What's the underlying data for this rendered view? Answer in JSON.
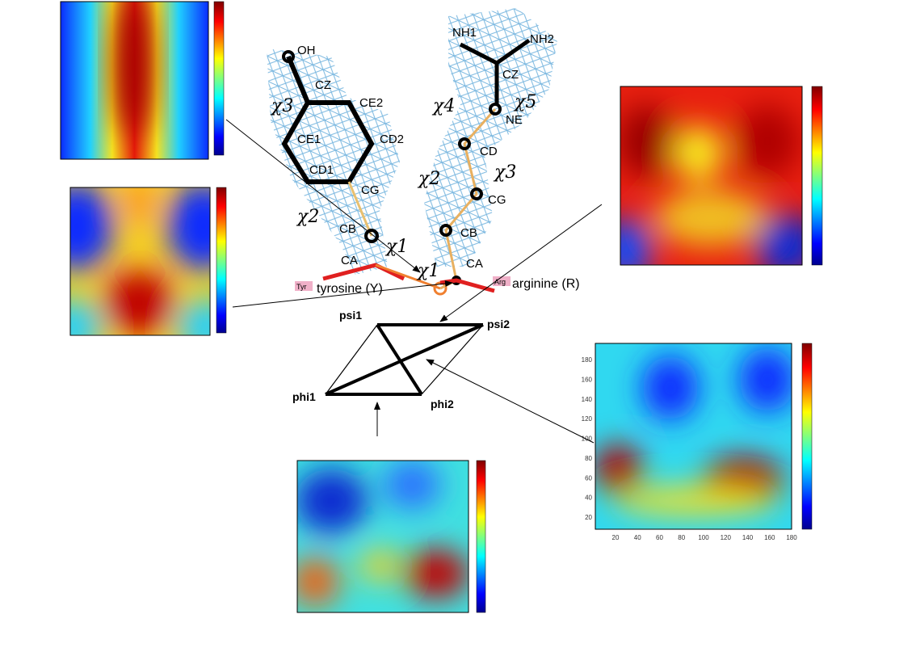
{
  "tyrosine": {
    "atoms": [
      "OH",
      "CZ",
      "CE2",
      "CE1",
      "CD2",
      "CD1",
      "CG",
      "CB",
      "CA"
    ],
    "chi": [
      "χ3",
      "χ2",
      "χ1"
    ],
    "code": "Tyr",
    "name": "tyrosine (Y)"
  },
  "arginine": {
    "atoms": [
      "NH1",
      "NH2",
      "CZ",
      "NE",
      "CD",
      "CG",
      "CB",
      "CA"
    ],
    "chi": [
      "χ5",
      "χ4",
      "χ3",
      "χ2",
      "χ1"
    ],
    "code": "Arg",
    "name": "arginine (R)"
  },
  "dihedrals": [
    "psi1",
    "psi2",
    "phi1",
    "phi2"
  ],
  "heatmap_axis_ticks": [
    "20",
    "40",
    "60",
    "80",
    "100",
    "120",
    "140",
    "160",
    "180"
  ]
}
